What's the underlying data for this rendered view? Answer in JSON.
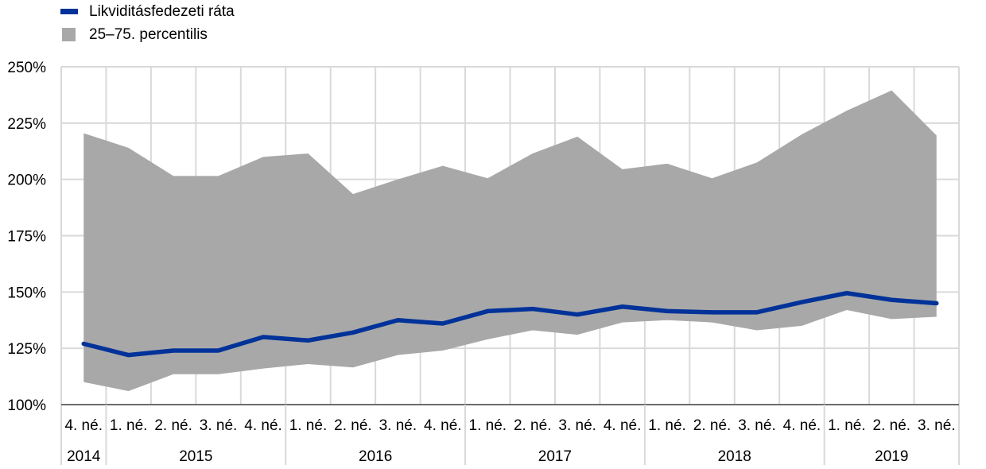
{
  "legend": {
    "line_label": "Likviditásfedezeti ráta",
    "band_label": "25–75. percentilis"
  },
  "colors": {
    "line": "#003299",
    "band": "#a8a8a8",
    "grid": "#d9d9d9"
  },
  "chart_data": {
    "type": "area",
    "ylim": [
      100,
      250
    ],
    "yticks": [
      "100%",
      "125%",
      "150%",
      "175%",
      "200%",
      "225%",
      "250%"
    ],
    "ytick_values": [
      100,
      125,
      150,
      175,
      200,
      225,
      250
    ],
    "categories": [
      "4. né.",
      "1. né.",
      "2. né.",
      "3. né.",
      "4. né.",
      "1. né.",
      "2. né.",
      "3. né.",
      "4. né.",
      "1. né.",
      "2. né.",
      "3. né.",
      "4. né.",
      "1. né.",
      "2. né.",
      "3. né.",
      "4. né.",
      "1. né.",
      "2. né.",
      "3. né."
    ],
    "year_groups": [
      {
        "label": "2014",
        "count": 1
      },
      {
        "label": "2015",
        "count": 4
      },
      {
        "label": "2016",
        "count": 4
      },
      {
        "label": "2017",
        "count": 4
      },
      {
        "label": "2018",
        "count": 4
      },
      {
        "label": "2019",
        "count": 3
      }
    ],
    "series": [
      {
        "name": "Likviditásfedezeti ráta",
        "type": "line",
        "values": [
          127,
          122,
          124,
          124,
          130,
          128.5,
          132,
          137.5,
          136,
          141.5,
          142.5,
          140,
          143.5,
          141.5,
          141,
          141,
          145.5,
          149.5,
          146.5,
          145
        ]
      },
      {
        "name": "25–75. percentilis",
        "type": "band",
        "lower": [
          110,
          106,
          113.5,
          113.5,
          116,
          118,
          116.5,
          122,
          124,
          129,
          133,
          131,
          136.5,
          137.5,
          136.5,
          133,
          135,
          142,
          138,
          139
        ],
        "upper": [
          220.5,
          214,
          201.5,
          201.5,
          210,
          211.5,
          193.5,
          200,
          206,
          200.5,
          211.5,
          219,
          204.5,
          207,
          200.5,
          207.5,
          220,
          230.5,
          239.5,
          219.5
        ]
      }
    ]
  }
}
